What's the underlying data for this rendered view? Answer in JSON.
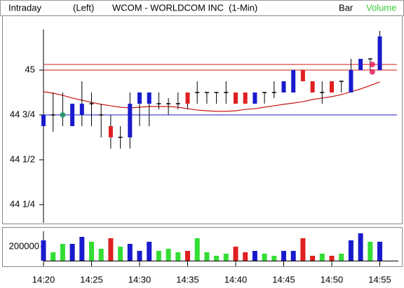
{
  "header": {
    "mode": "Intraday",
    "axis_side": "(Left)",
    "symbol": "WCOM - WORLDCOM INC  (1-Min)",
    "style": "Bar",
    "lower": "Volume"
  },
  "chart_data": {
    "type": "candlestick",
    "categories": [
      "14:20",
      null,
      null,
      null,
      null,
      "14:25",
      null,
      null,
      null,
      null,
      "14:30",
      null,
      null,
      null,
      null,
      "14:35",
      null,
      null,
      null,
      null,
      "14:40",
      null,
      null,
      null,
      null,
      "14:45",
      null,
      null,
      null,
      null,
      "14:50",
      null,
      null,
      null,
      null,
      "14:55"
    ],
    "open": [
      44.6875,
      44.75,
      44.75,
      44.6875,
      44.75,
      44.8125,
      44.75,
      44.6875,
      44.625,
      44.625,
      44.8125,
      44.8125,
      44.8125,
      44.8125,
      44.8125,
      44.875,
      44.875,
      44.875,
      44.875,
      44.875,
      44.875,
      44.875,
      44.8125,
      44.875,
      44.875,
      44.875,
      44.875,
      45,
      44.9375,
      44.875,
      44.9375,
      44.9375,
      44.875,
      45,
      45.0625,
      45
    ],
    "high": [
      44.84375,
      44.875,
      44.875,
      44.8125,
      44.9375,
      44.875,
      44.8125,
      44.75,
      44.6875,
      44.875,
      44.875,
      44.875,
      44.875,
      44.84375,
      44.875,
      44.875,
      44.9375,
      44.875,
      44.875,
      44.9375,
      44.875,
      44.875,
      44.875,
      44.875,
      44.9375,
      44.9375,
      45,
      45,
      44.9375,
      44.9375,
      44.9375,
      44.9375,
      45.0625,
      45.0625,
      45.0625,
      45.21875
    ],
    "low": [
      44.625,
      44.65625,
      44.6875,
      44.6875,
      44.6875,
      44.6875,
      44.625,
      44.5625,
      44.5625,
      44.5625,
      44.6875,
      44.6875,
      44.78125,
      44.75,
      44.78125,
      44.78125,
      44.8125,
      44.8125,
      44.8125,
      44.8125,
      44.8125,
      44.8125,
      44.8125,
      44.8125,
      44.84375,
      44.875,
      44.875,
      44.9375,
      44.875,
      44.8125,
      44.875,
      44.875,
      44.875,
      45,
      45,
      45
    ],
    "close": [
      44.75,
      44.75,
      44.75,
      44.8125,
      44.8125,
      44.8125,
      44.75,
      44.625,
      44.625,
      44.8125,
      44.875,
      44.875,
      44.8125,
      44.8125,
      44.8125,
      44.8125,
      44.875,
      44.875,
      44.875,
      44.875,
      44.8125,
      44.8125,
      44.875,
      44.875,
      44.875,
      44.9375,
      45,
      44.9375,
      44.875,
      44.875,
      44.875,
      44.9375,
      45,
      45.0625,
      45.0625,
      45.1875
    ],
    "up_color": "#1a1acc",
    "down_color": "#e02020",
    "flat_color": "#000000",
    "ylim": [
      44.1484,
      45.293
    ],
    "yticks": [
      {
        "value": 44.25,
        "label": "44 1/4"
      },
      {
        "value": 44.5,
        "label": "44 1/2"
      },
      {
        "value": 44.75,
        "label": "44 3/4"
      },
      45
    ],
    "hlines": [
      {
        "value": 45.03125,
        "color": "#d01818"
      },
      {
        "value": 45,
        "color": "#d01818"
      },
      {
        "value": 44.75,
        "color": "#1a1acc"
      }
    ],
    "moving_average": {
      "color": "#c81414",
      "values": [
        44.879,
        44.871,
        44.859,
        44.844,
        44.832,
        44.82,
        44.809,
        44.801,
        44.793,
        44.789,
        44.793,
        44.797,
        44.797,
        44.797,
        44.793,
        44.785,
        44.777,
        44.773,
        44.77,
        44.77,
        44.773,
        44.781,
        44.785,
        44.793,
        44.801,
        44.809,
        44.816,
        44.824,
        44.836,
        44.844,
        44.852,
        44.863,
        44.879,
        44.895,
        44.914,
        44.934
      ]
    },
    "markers": [
      {
        "color": "#1f9a6a",
        "values": [
          null,
          null,
          44.75,
          null,
          null,
          null,
          null,
          null,
          null,
          null,
          null,
          null,
          null,
          null,
          null,
          null,
          null,
          null,
          null,
          null,
          null,
          null,
          null,
          null,
          null,
          null,
          null,
          null,
          null,
          null,
          null,
          null,
          null,
          null,
          null,
          null
        ]
      },
      {
        "color": "#e8205a",
        "values": [
          null,
          null,
          null,
          null,
          null,
          null,
          null,
          null,
          null,
          null,
          null,
          null,
          null,
          null,
          null,
          null,
          null,
          null,
          null,
          null,
          null,
          null,
          null,
          null,
          null,
          null,
          null,
          null,
          null,
          null,
          null,
          null,
          null,
          null,
          45.03125,
          null
        ]
      },
      {
        "color": "#e8205a",
        "values": [
          null,
          null,
          null,
          null,
          null,
          null,
          null,
          null,
          null,
          null,
          null,
          null,
          null,
          null,
          null,
          null,
          null,
          null,
          null,
          null,
          null,
          null,
          null,
          null,
          null,
          null,
          null,
          null,
          null,
          null,
          null,
          null,
          null,
          null,
          44.99,
          null
        ]
      }
    ],
    "volume": {
      "values": [
        290000,
        120000,
        240000,
        240000,
        340000,
        270000,
        170000,
        320000,
        200000,
        240000,
        140000,
        270000,
        140000,
        170000,
        120000,
        140000,
        320000,
        120000,
        70000,
        100000,
        200000,
        120000,
        140000,
        100000,
        70000,
        140000,
        140000,
        320000,
        70000,
        100000,
        70000,
        100000,
        290000,
        390000,
        270000,
        270000
      ],
      "up_color": "#1a1acc",
      "down_color": "#e02020",
      "flat_color": "#33dd33",
      "ylim": [
        0,
        470000
      ],
      "yticks": [
        200000
      ]
    }
  }
}
